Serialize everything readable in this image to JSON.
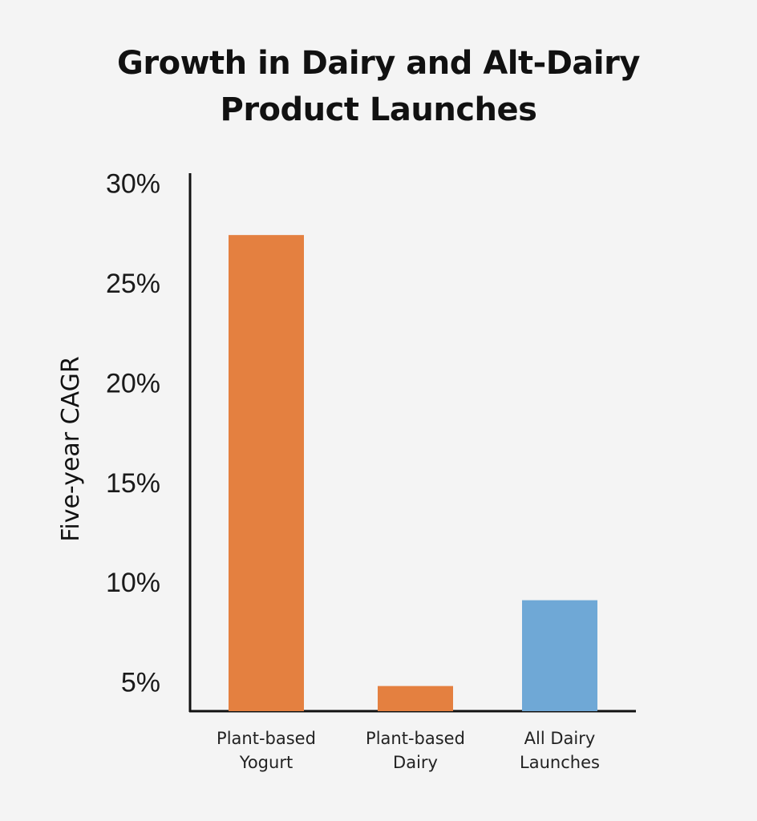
{
  "chart_data": {
    "type": "bar",
    "title_lines": [
      "Growth in Dairy and Alt-Dairy",
      "Product Launches"
    ],
    "ylabel": "Five-year CAGR",
    "xlabel": "",
    "categories": [
      [
        "Plant-based",
        "Yogurt"
      ],
      [
        "Plant-based",
        "Dairy"
      ],
      [
        "All Dairy",
        "Launches"
      ]
    ],
    "values": [
      27.4,
      4.8,
      9.1
    ],
    "bar_colors": [
      "#e48040",
      "#e48040",
      "#6fa8d6"
    ],
    "yticks": [
      {
        "value": 5,
        "label": "5%"
      },
      {
        "value": 10,
        "label": "10%"
      },
      {
        "value": 15,
        "label": "15%"
      },
      {
        "value": 20,
        "label": "20%"
      },
      {
        "value": 25,
        "label": "25%"
      },
      {
        "value": 30,
        "label": "30%"
      }
    ],
    "ylim": [
      3.5,
      30.5
    ],
    "grid": false,
    "legend": "none"
  }
}
